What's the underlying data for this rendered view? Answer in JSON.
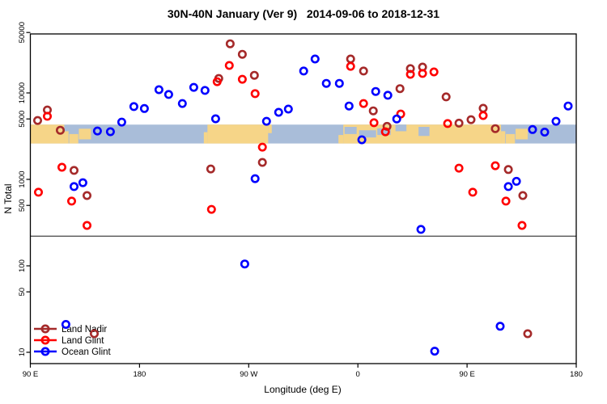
{
  "title": "30N-40N January (Ver 9)   2014-09-06 to 2018-12-31",
  "chart_data": {
    "type": "scatter",
    "title": "30N-40N January (Ver 9)   2014-09-06 to 2018-12-31",
    "xlabel": "Longitude (deg E)",
    "ylabel": "N Total",
    "y_scale": "log10",
    "ylim": [
      7.5,
      55000
    ],
    "x_axis_note": "axis starts at 90E and spans 450 degrees eastward; d = degrees east of 90E",
    "x_ticks": [
      {
        "d": 0,
        "label": "90 E"
      },
      {
        "d": 90,
        "label": "180"
      },
      {
        "d": 180,
        "label": "90 W"
      },
      {
        "d": 270,
        "label": "0"
      },
      {
        "d": 360,
        "label": "90 E"
      },
      {
        "d": 450,
        "label": "180"
      }
    ],
    "y_ticks": [
      {
        "n": 50000,
        "label": "50000"
      },
      {
        "n": 10000,
        "label": "10000"
      },
      {
        "n": 5000,
        "label": "5000"
      },
      {
        "n": 1000,
        "label": "1000"
      },
      {
        "n": 500,
        "label": "500"
      },
      {
        "n": 100,
        "label": "100"
      },
      {
        "n": 50,
        "label": "50"
      },
      {
        "n": 10,
        "label": "10"
      }
    ],
    "reference_line_n": 220,
    "legend_position": "bottom-left",
    "series": [
      {
        "name": "Land Nadir",
        "color": "#A52A2A",
        "points": [
          {
            "d": 6.0,
            "n": 4800
          },
          {
            "d": 14.0,
            "n": 6350
          },
          {
            "d": 24.7,
            "n": 3700
          },
          {
            "d": 36.0,
            "n": 1270
          },
          {
            "d": 46.7,
            "n": 650
          },
          {
            "d": 52.7,
            "n": 16.4
          },
          {
            "d": 148.7,
            "n": 1320
          },
          {
            "d": 155.3,
            "n": 14700
          },
          {
            "d": 164.7,
            "n": 37000
          },
          {
            "d": 174.7,
            "n": 28000
          },
          {
            "d": 184.7,
            "n": 16000
          },
          {
            "d": 191.3,
            "n": 1570
          },
          {
            "d": 264.0,
            "n": 24700
          },
          {
            "d": 274.7,
            "n": 17900
          },
          {
            "d": 282.7,
            "n": 6200
          },
          {
            "d": 294.0,
            "n": 4100
          },
          {
            "d": 304.7,
            "n": 11200
          },
          {
            "d": 313.3,
            "n": 19100
          },
          {
            "d": 323.3,
            "n": 19900
          },
          {
            "d": 342.7,
            "n": 9000
          },
          {
            "d": 353.3,
            "n": 4470
          },
          {
            "d": 363.3,
            "n": 4900
          },
          {
            "d": 373.3,
            "n": 6640
          },
          {
            "d": 383.3,
            "n": 3860
          },
          {
            "d": 394.0,
            "n": 1300
          },
          {
            "d": 406.0,
            "n": 650
          },
          {
            "d": 410.0,
            "n": 16.4
          }
        ]
      },
      {
        "name": "Land Glint",
        "color": "#FF0000",
        "points": [
          {
            "d": 6.7,
            "n": 710
          },
          {
            "d": 14.0,
            "n": 5370
          },
          {
            "d": 26.0,
            "n": 1380
          },
          {
            "d": 34.0,
            "n": 560
          },
          {
            "d": 46.7,
            "n": 293
          },
          {
            "d": 149.3,
            "n": 450
          },
          {
            "d": 154.0,
            "n": 13500
          },
          {
            "d": 164.0,
            "n": 20800
          },
          {
            "d": 174.7,
            "n": 14400
          },
          {
            "d": 185.3,
            "n": 9800
          },
          {
            "d": 191.3,
            "n": 2360
          },
          {
            "d": 264.0,
            "n": 20300
          },
          {
            "d": 274.7,
            "n": 7550
          },
          {
            "d": 283.3,
            "n": 4520
          },
          {
            "d": 292.7,
            "n": 3550
          },
          {
            "d": 305.3,
            "n": 5700
          },
          {
            "d": 313.3,
            "n": 16400
          },
          {
            "d": 323.3,
            "n": 16800
          },
          {
            "d": 332.7,
            "n": 17500
          },
          {
            "d": 344.0,
            "n": 4420
          },
          {
            "d": 353.3,
            "n": 1350
          },
          {
            "d": 364.7,
            "n": 710
          },
          {
            "d": 373.3,
            "n": 5480
          },
          {
            "d": 383.3,
            "n": 1440
          },
          {
            "d": 392.0,
            "n": 560
          },
          {
            "d": 405.3,
            "n": 293
          }
        ]
      },
      {
        "name": "Ocean Glint",
        "color": "#0000FF",
        "points": [
          {
            "d": 29.3,
            "n": 21
          },
          {
            "d": 36.0,
            "n": 825
          },
          {
            "d": 43.3,
            "n": 915
          },
          {
            "d": 55.3,
            "n": 3630
          },
          {
            "d": 66.0,
            "n": 3560
          },
          {
            "d": 75.3,
            "n": 4600
          },
          {
            "d": 85.3,
            "n": 6950
          },
          {
            "d": 94.0,
            "n": 6600
          },
          {
            "d": 106.0,
            "n": 10900
          },
          {
            "d": 114.0,
            "n": 9600
          },
          {
            "d": 125.3,
            "n": 7550
          },
          {
            "d": 134.7,
            "n": 11600
          },
          {
            "d": 144.0,
            "n": 10700
          },
          {
            "d": 152.7,
            "n": 5020
          },
          {
            "d": 176.7,
            "n": 105
          },
          {
            "d": 185.3,
            "n": 1020
          },
          {
            "d": 194.7,
            "n": 4700
          },
          {
            "d": 204.7,
            "n": 5970
          },
          {
            "d": 212.7,
            "n": 6500
          },
          {
            "d": 225.3,
            "n": 17900
          },
          {
            "d": 234.7,
            "n": 24700
          },
          {
            "d": 244.0,
            "n": 12900
          },
          {
            "d": 254.7,
            "n": 12900
          },
          {
            "d": 262.7,
            "n": 7050
          },
          {
            "d": 273.3,
            "n": 2870
          },
          {
            "d": 284.7,
            "n": 10400
          },
          {
            "d": 294.7,
            "n": 9400
          },
          {
            "d": 302.0,
            "n": 5000
          },
          {
            "d": 322.0,
            "n": 264
          },
          {
            "d": 333.3,
            "n": 10.3
          },
          {
            "d": 387.3,
            "n": 20
          },
          {
            "d": 394.0,
            "n": 825
          },
          {
            "d": 400.7,
            "n": 950
          },
          {
            "d": 414.0,
            "n": 3770
          },
          {
            "d": 424.0,
            "n": 3520
          },
          {
            "d": 433.3,
            "n": 4700
          },
          {
            "d": 443.3,
            "n": 7050
          }
        ]
      }
    ],
    "map_band": {
      "n_top": 4300,
      "n_bottom": 2600,
      "ocean_color": "#A9BDD9",
      "land_color": "#F6D588",
      "land_segments": [
        {
          "d0": 0,
          "d1": 28,
          "t": 0,
          "b": 1
        },
        {
          "d0": 28,
          "d1": 31.5,
          "t": 0.35,
          "b": 1
        },
        {
          "d0": 32,
          "d1": 39.5,
          "t": 0.5,
          "b": 1
        },
        {
          "d0": 40,
          "d1": 50,
          "t": 0.22,
          "b": 0.78
        },
        {
          "d0": 143,
          "d1": 146,
          "t": 0.4,
          "b": 1
        },
        {
          "d0": 146,
          "d1": 196,
          "t": 0,
          "b": 1
        },
        {
          "d0": 196,
          "d1": 199,
          "t": 0,
          "b": 0.45
        },
        {
          "d0": 254,
          "d1": 258,
          "t": 0.55,
          "b": 1
        },
        {
          "d0": 258,
          "d1": 388,
          "t": 0,
          "b": 1
        },
        {
          "d0": 388,
          "d1": 391.5,
          "t": 0.35,
          "b": 1
        },
        {
          "d0": 392,
          "d1": 399.5,
          "t": 0.5,
          "b": 1
        },
        {
          "d0": 400,
          "d1": 410,
          "t": 0.22,
          "b": 0.78
        }
      ],
      "sea_patches": [
        {
          "d0": 259,
          "d1": 269,
          "t": 0.12,
          "b": 0.5
        },
        {
          "d0": 271,
          "d1": 285,
          "t": 0.3,
          "b": 0.68
        },
        {
          "d0": 286,
          "d1": 297,
          "t": 0.2,
          "b": 0.55
        },
        {
          "d0": 301,
          "d1": 310,
          "t": 0.0,
          "b": 0.35
        },
        {
          "d0": 320,
          "d1": 329,
          "t": 0.12,
          "b": 0.6
        }
      ]
    }
  }
}
